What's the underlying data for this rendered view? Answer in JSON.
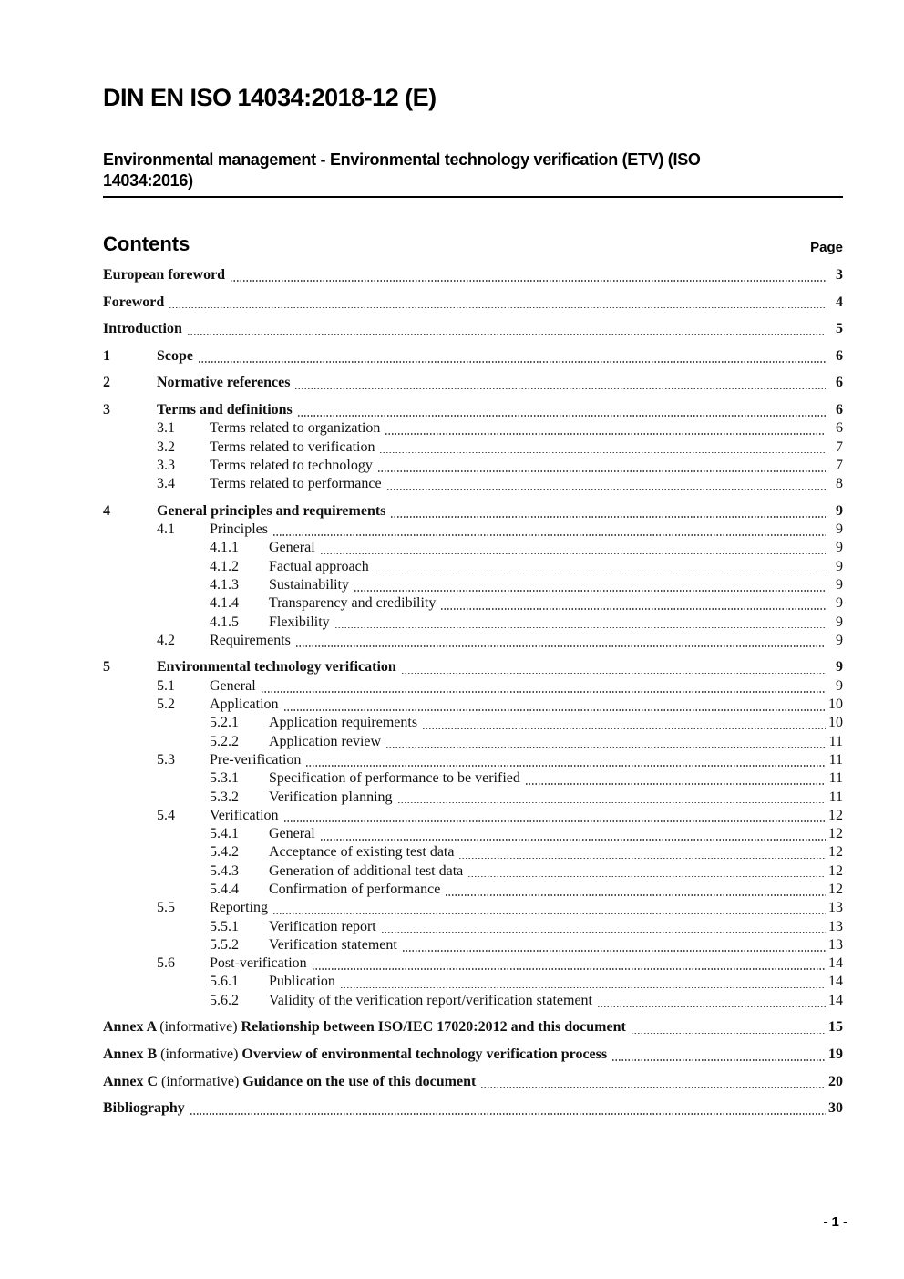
{
  "header": {
    "title": "DIN EN ISO 14034:2018-12 (E)",
    "subtitle": "Environmental management - Environmental technology verification (ETV) (ISO\n14034:2016)"
  },
  "contents": {
    "heading": "Contents",
    "page_label": "Page"
  },
  "toc": [
    {
      "level": 0,
      "num": "",
      "label": "European foreword",
      "page": "3",
      "bold": true
    },
    {
      "level": 0,
      "num": "",
      "label": "Foreword",
      "page": "4",
      "bold": true
    },
    {
      "level": 0,
      "num": "",
      "label": "Introduction",
      "page": "5",
      "bold": true
    },
    {
      "level": 1,
      "num": "1",
      "label": "Scope",
      "page": "6",
      "bold": true
    },
    {
      "level": 1,
      "num": "2",
      "label": "Normative references",
      "page": "6",
      "bold": true
    },
    {
      "level": 1,
      "num": "3",
      "label": "Terms and definitions",
      "page": "6",
      "bold": true
    },
    {
      "level": 2,
      "num": "3.1",
      "label": "Terms related to organization",
      "page": "6",
      "bold": false
    },
    {
      "level": 2,
      "num": "3.2",
      "label": "Terms related to verification",
      "page": "7",
      "bold": false
    },
    {
      "level": 2,
      "num": "3.3",
      "label": "Terms related to technology",
      "page": "7",
      "bold": false
    },
    {
      "level": 2,
      "num": "3.4",
      "label": "Terms related to performance",
      "page": "8",
      "bold": false
    },
    {
      "level": 1,
      "num": "4",
      "label": "General principles and requirements",
      "page": "9",
      "bold": true
    },
    {
      "level": 2,
      "num": "4.1",
      "label": "Principles",
      "page": "9",
      "bold": false
    },
    {
      "level": 3,
      "num": "4.1.1",
      "label": "General",
      "page": "9",
      "bold": false
    },
    {
      "level": 3,
      "num": "4.1.2",
      "label": "Factual approach",
      "page": "9",
      "bold": false
    },
    {
      "level": 3,
      "num": "4.1.3",
      "label": "Sustainability",
      "page": "9",
      "bold": false
    },
    {
      "level": 3,
      "num": "4.1.4",
      "label": "Transparency and credibility",
      "page": "9",
      "bold": false
    },
    {
      "level": 3,
      "num": "4.1.5",
      "label": "Flexibility",
      "page": "9",
      "bold": false
    },
    {
      "level": 2,
      "num": "4.2",
      "label": "Requirements",
      "page": "9",
      "bold": false
    },
    {
      "level": 1,
      "num": "5",
      "label": "Environmental technology verification",
      "page": "9",
      "bold": true
    },
    {
      "level": 2,
      "num": "5.1",
      "label": "General",
      "page": "9",
      "bold": false
    },
    {
      "level": 2,
      "num": "5.2",
      "label": "Application",
      "page": "10",
      "bold": false
    },
    {
      "level": 3,
      "num": "5.2.1",
      "label": "Application requirements",
      "page": "10",
      "bold": false
    },
    {
      "level": 3,
      "num": "5.2.2",
      "label": "Application review",
      "page": "11",
      "bold": false
    },
    {
      "level": 2,
      "num": "5.3",
      "label": "Pre-verification",
      "page": "11",
      "bold": false
    },
    {
      "level": 3,
      "num": "5.3.1",
      "label": "Specification of performance to be verified",
      "page": "11",
      "bold": false
    },
    {
      "level": 3,
      "num": "5.3.2",
      "label": "Verification planning",
      "page": "11",
      "bold": false
    },
    {
      "level": 2,
      "num": "5.4",
      "label": "Verification",
      "page": "12",
      "bold": false
    },
    {
      "level": 3,
      "num": "5.4.1",
      "label": "General",
      "page": "12",
      "bold": false
    },
    {
      "level": 3,
      "num": "5.4.2",
      "label": "Acceptance of existing test data",
      "page": "12",
      "bold": false
    },
    {
      "level": 3,
      "num": "5.4.3",
      "label": "Generation of additional test data",
      "page": "12",
      "bold": false
    },
    {
      "level": 3,
      "num": "5.4.4",
      "label": "Confirmation of performance",
      "page": "12",
      "bold": false
    },
    {
      "level": 2,
      "num": "5.5",
      "label": "Reporting",
      "page": "13",
      "bold": false
    },
    {
      "level": 3,
      "num": "5.5.1",
      "label": "Verification report",
      "page": "13",
      "bold": false
    },
    {
      "level": 3,
      "num": "5.5.2",
      "label": "Verification statement",
      "page": "13",
      "bold": false
    },
    {
      "level": 2,
      "num": "5.6",
      "label": "Post-verification",
      "page": "14",
      "bold": false
    },
    {
      "level": 3,
      "num": "5.6.1",
      "label": "Publication",
      "page": "14",
      "bold": false
    },
    {
      "level": 3,
      "num": "5.6.2",
      "label": "Validity of the verification report/verification statement",
      "page": "14",
      "bold": false
    },
    {
      "level": 0,
      "num": "",
      "annex": "Annex A",
      "qualifier": "(informative)",
      "label": "Relationship between ISO/IEC 17020:2012 and this document",
      "page": "15",
      "bold": true
    },
    {
      "level": 0,
      "num": "",
      "annex": "Annex B",
      "qualifier": "(informative)",
      "label": "Overview of environmental technology verification process",
      "page": "19",
      "bold": true
    },
    {
      "level": 0,
      "num": "",
      "annex": "Annex C",
      "qualifier": "(informative)",
      "label": "Guidance on the use of this document",
      "page": "20",
      "bold": true
    },
    {
      "level": 0,
      "num": "",
      "label": "Bibliography",
      "page": "30",
      "bold": true
    }
  ],
  "footer": {
    "page_number": "- 1 -"
  }
}
